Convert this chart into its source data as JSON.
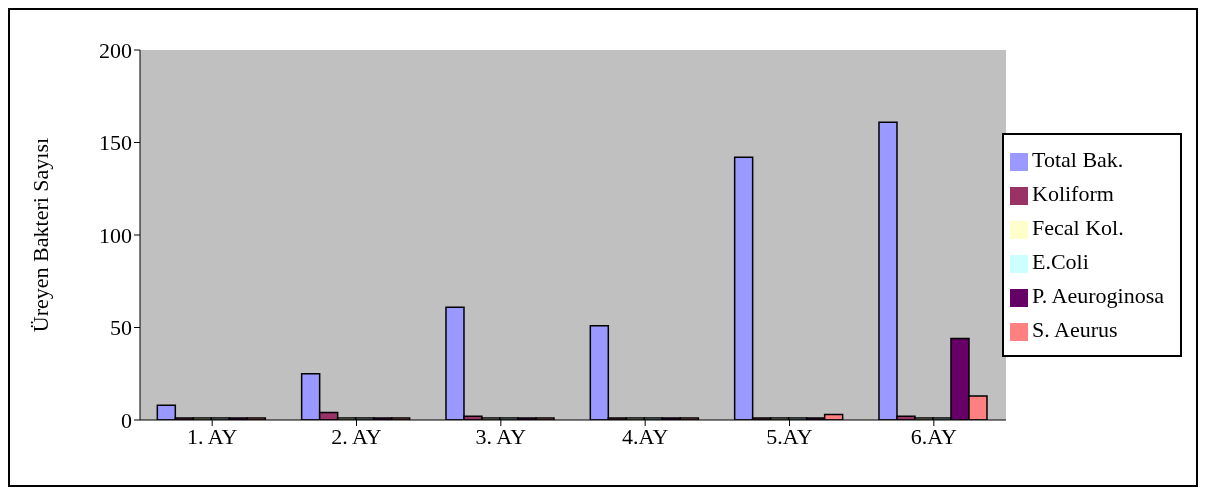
{
  "chart_data": {
    "type": "bar",
    "ylabel": "Üreyen Bakteri Sayısı",
    "categories": [
      "1. AY",
      "2. AY",
      "3. AY",
      "4.AY",
      "5.AY",
      "6.AY"
    ],
    "series": [
      {
        "name": "Total Bak.",
        "color": "#9999ff",
        "values": [
          8,
          25,
          61,
          51,
          142,
          161
        ]
      },
      {
        "name": "Koliform",
        "color": "#993366",
        "values": [
          0,
          4,
          2,
          0,
          0,
          2
        ]
      },
      {
        "name": "Fecal Kol.",
        "color": "#ffffcc",
        "values": [
          0,
          0,
          0,
          0,
          0,
          0
        ]
      },
      {
        "name": "E.Coli",
        "color": "#ccffff",
        "values": [
          0,
          0,
          0,
          0,
          0,
          0
        ]
      },
      {
        "name": "P. Aeuroginosa",
        "color": "#660066",
        "values": [
          0,
          0,
          0,
          0,
          1,
          44
        ]
      },
      {
        "name": "S. Aeurus",
        "color": "#ff8080",
        "values": [
          0,
          0,
          0,
          0,
          3,
          13
        ]
      }
    ],
    "ylim": [
      0,
      200
    ],
    "yticks": [
      0,
      50,
      100,
      150,
      200
    ],
    "grid": false,
    "legend": "right"
  }
}
